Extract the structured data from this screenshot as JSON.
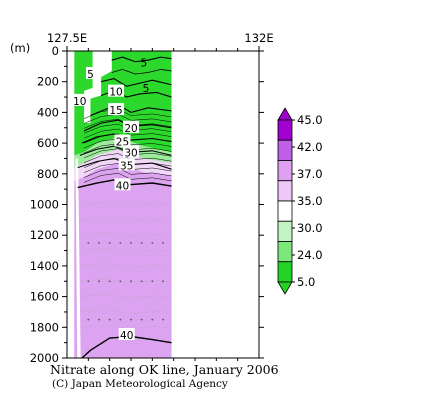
{
  "chart_data": {
    "type": "contour_section",
    "title": "Nitrate along OK line, January 2006",
    "credit": "(C) Japan Meteorological Agency",
    "x_axis": {
      "range": [
        127.5,
        132
      ],
      "ticks": [
        {
          "value": 127.5,
          "label": "127.5E"
        },
        {
          "value": 132,
          "label": "132E"
        }
      ],
      "position": "top"
    },
    "y_axis": {
      "label": "(m)",
      "range": [
        0,
        2000
      ],
      "inverted": true,
      "ticks": [
        0,
        200,
        400,
        600,
        800,
        1000,
        1200,
        1400,
        1600,
        1800,
        2000
      ]
    },
    "contour_labels": [
      {
        "text": "5",
        "lon": 129.3,
        "depth": 75
      },
      {
        "text": "10",
        "lon": 127.8,
        "depth": 325
      },
      {
        "text": "5",
        "lon": 128.05,
        "depth": 150
      },
      {
        "text": "10",
        "lon": 128.65,
        "depth": 265
      },
      {
        "text": "5",
        "lon": 129.35,
        "depth": 240
      },
      {
        "text": "15",
        "lon": 128.65,
        "depth": 385
      },
      {
        "text": "20",
        "lon": 129.0,
        "depth": 500
      },
      {
        "text": "25",
        "lon": 128.8,
        "depth": 590
      },
      {
        "text": "30",
        "lon": 129.0,
        "depth": 660
      },
      {
        "text": "35",
        "lon": 128.9,
        "depth": 745
      },
      {
        "text": "40",
        "lon": 128.8,
        "depth": 875
      },
      {
        "text": "40",
        "lon": 128.9,
        "depth": 1850
      }
    ],
    "contour_levels": [
      5,
      10,
      15,
      20,
      25,
      30,
      35,
      40
    ],
    "colorbar": {
      "ticks": [
        "45.0",
        "42.0",
        "37.0",
        "35.0",
        "30.0",
        "24.0",
        "5.0"
      ],
      "colors": [
        "#a000d0",
        "#c060e8",
        "#dfa0f2",
        "#f0c8f8",
        "#ffffff",
        "#c4f4c4",
        "#7ce87c",
        "#24d424"
      ]
    },
    "missing_region": "white (no data)"
  }
}
